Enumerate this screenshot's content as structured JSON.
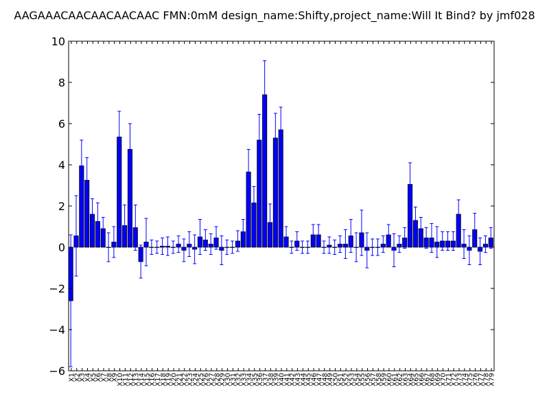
{
  "chart_data": {
    "type": "bar",
    "title": "AAGAAACAACAACAACAAC  FMN:0mM  design_name:Shifty,project_name:Will It Bind? by jmf028",
    "xlabel": "",
    "ylabel": "",
    "ylim": [
      -6,
      10
    ],
    "yticks": [
      -6,
      -4,
      -2,
      0,
      2,
      4,
      6,
      8,
      10
    ],
    "ytick_labels": [
      "−6",
      "−4",
      "−2",
      "0",
      "2",
      "4",
      "6",
      "8",
      "10"
    ],
    "grid": false,
    "bar_color": "#0000ff",
    "error_color": "#0000ff",
    "categories": [
      "X1",
      "X2",
      "X3",
      "X4",
      "X5",
      "X6",
      "X7",
      "X8",
      "X9",
      "X10",
      "X11",
      "X12",
      "X13",
      "X14",
      "X15",
      "X16",
      "X17",
      "X18",
      "X19",
      "X20",
      "X21",
      "X22",
      "X23",
      "X24",
      "X25",
      "X26",
      "X27",
      "X28",
      "X29",
      "X30",
      "X31",
      "X32",
      "X33",
      "X34",
      "X35",
      "X36",
      "X37",
      "X38",
      "X39",
      "X40",
      "X41",
      "X42",
      "X43",
      "X44",
      "X45",
      "X46",
      "X47",
      "X48",
      "X49",
      "X50",
      "X51",
      "X52",
      "X53",
      "X54",
      "X55",
      "X56",
      "X57",
      "X58",
      "X59",
      "X60",
      "X61",
      "X62",
      "X63",
      "X64",
      "X65",
      "X66",
      "X67",
      "X68",
      "X69",
      "X70",
      "X71",
      "X72",
      "X73",
      "X74",
      "X75",
      "X76",
      "X77",
      "X78",
      "X79"
    ],
    "values": [
      -2.6,
      0.55,
      3.95,
      3.25,
      1.6,
      1.25,
      0.9,
      0.0,
      0.25,
      5.35,
      1.05,
      4.75,
      0.95,
      -0.7,
      0.25,
      0.0,
      0.0,
      0.05,
      0.05,
      0.0,
      0.15,
      -0.15,
      0.15,
      -0.1,
      0.5,
      0.35,
      0.15,
      0.45,
      -0.15,
      0.0,
      0.0,
      0.3,
      0.75,
      3.65,
      2.15,
      5.2,
      7.4,
      1.2,
      5.3,
      5.7,
      0.5,
      0.0,
      0.3,
      0.0,
      0.0,
      0.6,
      0.6,
      0.0,
      0.1,
      0.0,
      0.15,
      0.15,
      0.55,
      0.0,
      0.7,
      -0.15,
      0.0,
      0.0,
      0.15,
      0.6,
      -0.15,
      0.15,
      0.45,
      3.05,
      1.3,
      0.9,
      0.45,
      0.45,
      0.25,
      0.3,
      0.3,
      0.3,
      1.6,
      0.15,
      -0.15,
      0.85,
      -0.2,
      0.15,
      0.45
    ],
    "errors": [
      3.2,
      1.95,
      1.25,
      1.1,
      0.75,
      0.9,
      0.55,
      0.7,
      0.75,
      1.25,
      1.0,
      1.25,
      1.1,
      0.8,
      1.15,
      0.35,
      0.3,
      0.4,
      0.45,
      0.3,
      0.4,
      0.55,
      0.6,
      0.7,
      0.85,
      0.5,
      0.5,
      0.55,
      0.7,
      0.35,
      0.3,
      0.5,
      0.6,
      1.1,
      0.8,
      1.25,
      1.65,
      0.9,
      1.2,
      1.1,
      0.5,
      0.3,
      0.45,
      0.3,
      0.3,
      0.5,
      0.5,
      0.3,
      0.4,
      0.35,
      0.4,
      0.7,
      0.8,
      0.7,
      1.1,
      0.85,
      0.4,
      0.4,
      0.4,
      0.5,
      0.8,
      0.4,
      0.5,
      1.05,
      0.65,
      0.55,
      0.5,
      0.7,
      0.75,
      0.45,
      0.45,
      0.45,
      0.7,
      0.7,
      0.7,
      0.8,
      0.65,
      0.4,
      0.5
    ]
  }
}
